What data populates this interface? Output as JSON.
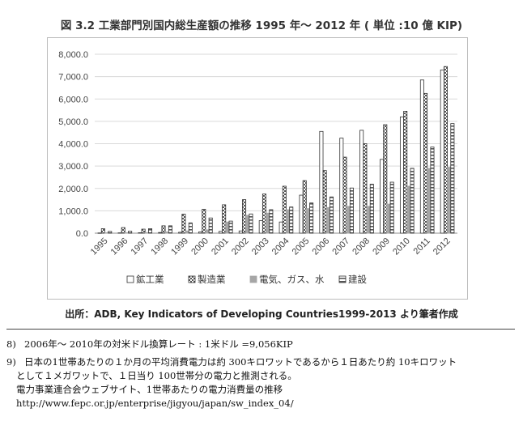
{
  "title": "図 3.2 工業部門別国内総生産額の推移 1995 年～ 2012 年 ( 単位 :10 億 KIP)",
  "source": "出所：ADB, Key Indicators of Developing Countries1999-2013 より筆者作成",
  "footnotes": [
    {
      "num": "8)",
      "lines": [
        "2006年～ 2010年の対米ドル換算レート : 1米ドル =9,056KIP"
      ]
    },
    {
      "num": "9)",
      "lines": [
        "日本の1世帯あたりの１か月の平均消費電力は約 300キロワットであるから１日あたり約 10キロワット",
        "として１メガワットで、１日当り 100世帯分の電力と推測される。",
        "電力事業連合会ウェブサイト、1世帯あたりの電力消費量の推移",
        "http://www.fepc.or.jp/enterprise/jigyou/japan/sw_index_04/"
      ]
    }
  ],
  "chart_data": {
    "type": "bar",
    "title": "図 3.2 工業部門別国内総生産額の推移 1995 年～ 2012 年 ( 単位 :10 億 KIP)",
    "xlabel": "",
    "ylabel": "",
    "ylim": [
      0,
      8000
    ],
    "yticks": [
      "0.0",
      "1,000.0",
      "2,000.0",
      "3,000.0",
      "4,000.0",
      "5,000.0",
      "6,000.0",
      "7,000.0",
      "8,000.0"
    ],
    "categories": [
      "1995",
      "1996",
      "1997",
      "1998",
      "1999",
      "2000",
      "2001",
      "2002",
      "2003",
      "2004",
      "2005",
      "2006",
      "2007",
      "2008",
      "2009",
      "2010",
      "2011",
      "2012"
    ],
    "series": [
      {
        "name": "鉱工業",
        "values": [
          10,
          15,
          20,
          30,
          40,
          60,
          80,
          100,
          560,
          500,
          1700,
          4550,
          4250,
          4600,
          3300,
          5200,
          6850,
          7300
        ]
      },
      {
        "name": "製造業",
        "values": [
          200,
          250,
          180,
          330,
          850,
          1070,
          1270,
          1500,
          1750,
          2100,
          2350,
          2800,
          3400,
          4000,
          4850,
          5450,
          6250,
          7450
        ]
      },
      {
        "name": "電気、ガス、水",
        "values": [
          20,
          25,
          30,
          60,
          100,
          150,
          500,
          800,
          900,
          1050,
          1100,
          1150,
          1200,
          1200,
          1300,
          2100,
          2900,
          2950
        ]
      },
      {
        "name": "建設",
        "values": [
          80,
          90,
          200,
          330,
          460,
          680,
          540,
          860,
          1050,
          1170,
          1350,
          1620,
          2020,
          2190,
          2280,
          2900,
          3850,
          4900
        ]
      }
    ],
    "legend_position": "bottom",
    "colors": [
      "#ffffff",
      "#ffffff",
      "#a6a6a6",
      "#ffffff"
    ]
  }
}
